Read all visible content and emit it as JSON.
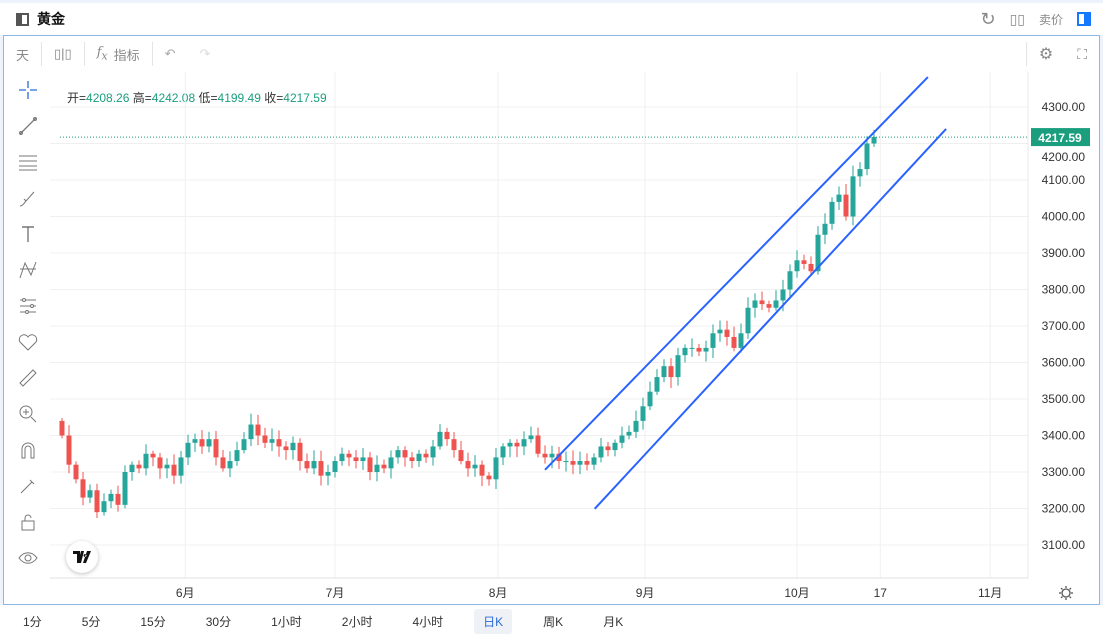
{
  "header": {
    "title": "黄金",
    "sell_price_label": "卖价",
    "icons": [
      "panel-icon",
      "refresh-icon",
      "grid-icon",
      "layout-toggle-icon"
    ]
  },
  "toolbar": {
    "interval": "天",
    "indicator_label": "指标"
  },
  "ohlc": {
    "open_label": "开=",
    "open": "4208.26",
    "high_label": "高=",
    "high": "4242.08",
    "low_label": "低=",
    "low": "4199.49",
    "close_label": "收=",
    "close": "4217.59"
  },
  "timeframes": [
    {
      "label": "1分"
    },
    {
      "label": "5分"
    },
    {
      "label": "15分"
    },
    {
      "label": "30分"
    },
    {
      "label": "1小时"
    },
    {
      "label": "2小时"
    },
    {
      "label": "4小时"
    },
    {
      "label": "日K",
      "active": true
    },
    {
      "label": "周K"
    },
    {
      "label": "月K"
    }
  ],
  "colors": {
    "up": "#26a69a",
    "down": "#ef5350",
    "price_tag": "#1a9e7e",
    "channel": "#2962ff",
    "frame": "#8cb6e6"
  },
  "chart_data": {
    "type": "candlestick",
    "current_price": "4217.59",
    "y_ticks": [
      "4300.00",
      "4200.00",
      "4100.00",
      "4000.00",
      "3900.00",
      "3800.00",
      "3700.00",
      "3600.00",
      "3500.00",
      "3400.00",
      "3300.00",
      "3200.00",
      "3100.00"
    ],
    "ylim": [
      3030,
      4380
    ],
    "x_labels": [
      {
        "label": "6月",
        "index": 17.6
      },
      {
        "label": "7月",
        "index": 39
      },
      {
        "label": "8月",
        "index": 62.3
      },
      {
        "label": "9月",
        "index": 83.3
      },
      {
        "label": "10月",
        "index": 105
      },
      {
        "label": "17",
        "index": 116.9
      },
      {
        "label": "11月",
        "index": 132.6
      }
    ],
    "closes": [
      3400,
      3320,
      3280,
      3230,
      3250,
      3190,
      3220,
      3240,
      3210,
      3300,
      3320,
      3310,
      3350,
      3340,
      3310,
      3320,
      3290,
      3340,
      3380,
      3390,
      3370,
      3390,
      3340,
      3310,
      3330,
      3360,
      3390,
      3430,
      3400,
      3380,
      3390,
      3370,
      3360,
      3380,
      3330,
      3310,
      3330,
      3290,
      3300,
      3330,
      3350,
      3340,
      3330,
      3340,
      3300,
      3320,
      3310,
      3340,
      3360,
      3340,
      3330,
      3350,
      3340,
      3370,
      3410,
      3390,
      3360,
      3330,
      3310,
      3320,
      3290,
      3280,
      3340,
      3370,
      3380,
      3370,
      3390,
      3400,
      3350,
      3340,
      3350,
      3330,
      3330,
      3320,
      3330,
      3320,
      3340,
      3370,
      3360,
      3380,
      3400,
      3410,
      3440,
      3480,
      3520,
      3560,
      3590,
      3560,
      3620,
      3640,
      3640,
      3630,
      3640,
      3680,
      3690,
      3670,
      3640,
      3680,
      3750,
      3770,
      3760,
      3750,
      3770,
      3800,
      3850,
      3880,
      3870,
      3850,
      3950,
      3980,
      4040,
      4060,
      4000,
      4110,
      4130,
      4200,
      4217.59
    ],
    "first_open": 3440,
    "channel_lines": [
      {
        "from": [
          69,
          3306
        ],
        "to": [
          123.7,
          4382
        ]
      },
      {
        "from": [
          76.1,
          3199
        ],
        "to": [
          126.3,
          4240
        ]
      }
    ]
  }
}
